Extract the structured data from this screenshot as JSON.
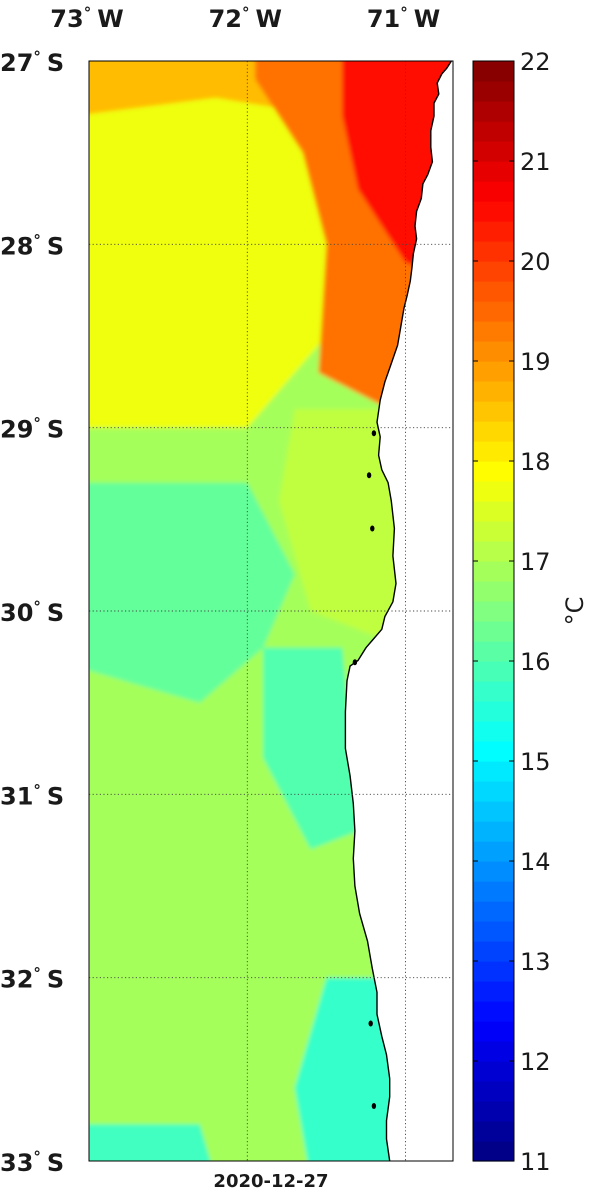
{
  "map": {
    "date_label": "2020-12-27",
    "lon_labels": [
      {
        "deg": "73",
        "dir": "W",
        "lon": -73
      },
      {
        "deg": "72",
        "dir": "W",
        "lon": -72
      },
      {
        "deg": "71",
        "dir": "W",
        "lon": -71
      }
    ],
    "lat_labels": [
      {
        "deg": "27",
        "dir": "S",
        "lat": -27
      },
      {
        "deg": "28",
        "dir": "S",
        "lat": -28
      },
      {
        "deg": "29",
        "dir": "S",
        "lat": -29
      },
      {
        "deg": "30",
        "dir": "S",
        "lat": -30
      },
      {
        "deg": "31",
        "dir": "S",
        "lat": -31
      },
      {
        "deg": "32",
        "dir": "S",
        "lat": -32
      },
      {
        "deg": "33",
        "dir": "S",
        "lat": -33
      }
    ],
    "degree_symbol": "°",
    "lon_range": [
      -73.0,
      -70.7
    ],
    "lat_range": [
      -33.0,
      -27.0
    ],
    "grid": true,
    "grid_style": "dotted"
  },
  "colorbar": {
    "unit_label": "°C",
    "min": 11,
    "max": 22,
    "tick_values": [
      11,
      12,
      13,
      14,
      15,
      16,
      17,
      18,
      19,
      20,
      21,
      22
    ],
    "tick_labels": [
      "11",
      "12",
      "13",
      "14",
      "15",
      "16",
      "17",
      "18",
      "19",
      "20",
      "21",
      "22"
    ],
    "colormap": "jet",
    "levels": 55
  },
  "colors": {
    "land": "#ffffff",
    "coastline": "#000000",
    "frame": "#000000",
    "grid": "#444444"
  }
}
